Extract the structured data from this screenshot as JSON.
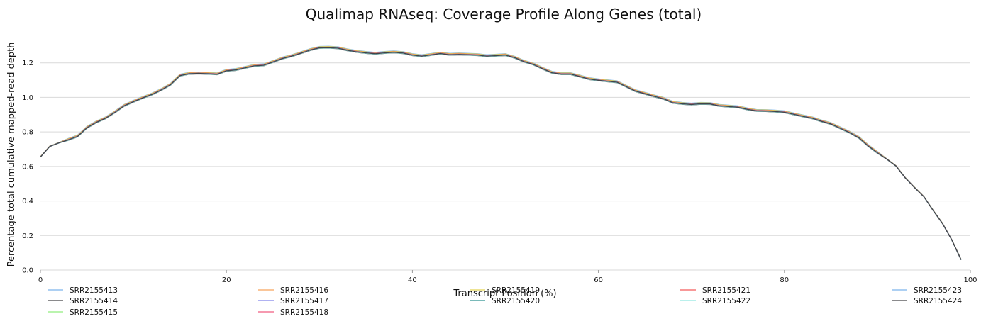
{
  "chart_data": {
    "type": "line",
    "title": "Qualimap RNAseq: Coverage Profile Along Genes (total)",
    "xlabel": "Transcript Position (%)",
    "ylabel": "Percentage total cumulative mapped-read depth",
    "xlim": [
      0,
      100
    ],
    "ylim": [
      0,
      1.4
    ],
    "x_ticks": [
      "0",
      "20",
      "40",
      "60",
      "80",
      "100"
    ],
    "y_ticks": [
      "0.0",
      "0.2",
      "0.4",
      "0.6",
      "0.8",
      "1.0",
      "1.2"
    ],
    "grid": "horizontal",
    "legend_position": "bottom",
    "x": [
      0,
      1,
      2,
      3,
      4,
      5,
      6,
      7,
      8,
      9,
      10,
      11,
      12,
      13,
      14,
      15,
      16,
      17,
      18,
      19,
      20,
      21,
      22,
      23,
      24,
      25,
      26,
      27,
      28,
      29,
      30,
      31,
      32,
      33,
      34,
      35,
      36,
      37,
      38,
      39,
      40,
      41,
      42,
      43,
      44,
      45,
      46,
      47,
      48,
      49,
      50,
      51,
      52,
      53,
      54,
      55,
      56,
      57,
      58,
      59,
      60,
      61,
      62,
      63,
      64,
      65,
      66,
      67,
      68,
      69,
      70,
      71,
      72,
      73,
      74,
      75,
      76,
      77,
      78,
      79,
      80,
      81,
      82,
      83,
      84,
      85,
      86,
      87,
      88,
      89,
      90,
      91,
      92,
      93,
      94,
      95,
      96,
      97,
      98,
      99
    ],
    "base_values": [
      0.655,
      0.716,
      0.737,
      0.755,
      0.775,
      0.825,
      0.856,
      0.88,
      0.914,
      0.952,
      0.976,
      0.998,
      1.018,
      1.044,
      1.075,
      1.127,
      1.138,
      1.14,
      1.138,
      1.135,
      1.155,
      1.16,
      1.172,
      1.184,
      1.187,
      1.206,
      1.226,
      1.24,
      1.257,
      1.275,
      1.288,
      1.289,
      1.286,
      1.274,
      1.265,
      1.259,
      1.254,
      1.259,
      1.262,
      1.258,
      1.246,
      1.24,
      1.247,
      1.255,
      1.248,
      1.25,
      1.248,
      1.246,
      1.24,
      1.243,
      1.246,
      1.231,
      1.208,
      1.192,
      1.167,
      1.144,
      1.136,
      1.136,
      1.122,
      1.107,
      1.1,
      1.094,
      1.089,
      1.063,
      1.037,
      1.022,
      1.007,
      0.993,
      0.97,
      0.964,
      0.96,
      0.964,
      0.963,
      0.952,
      0.948,
      0.944,
      0.932,
      0.923,
      0.922,
      0.919,
      0.915,
      0.903,
      0.891,
      0.88,
      0.862,
      0.847,
      0.822,
      0.797,
      0.767,
      0.72,
      0.68,
      0.643,
      0.603,
      0.534,
      0.478,
      0.425,
      0.345,
      0.27,
      0.175,
      0.06
    ],
    "series": [
      {
        "name": "SRR2155413",
        "color": "#7cb5ec",
        "offset": 0.007
      },
      {
        "name": "SRR2155414",
        "color": "#434348",
        "offset": -0.004
      },
      {
        "name": "SRR2155415",
        "color": "#90ed7d",
        "offset": 0.003
      },
      {
        "name": "SRR2155416",
        "color": "#f7a35c",
        "offset": 0.004
      },
      {
        "name": "SRR2155417",
        "color": "#8085e9",
        "offset": 0.002
      },
      {
        "name": "SRR2155418",
        "color": "#f15c80",
        "offset": -0.002
      },
      {
        "name": "SRR2155419",
        "color": "#e4d354",
        "offset": 0.005
      },
      {
        "name": "SRR2155420",
        "color": "#2b908f",
        "offset": 0.001
      },
      {
        "name": "SRR2155421",
        "color": "#f45b5b",
        "offset": 0.002
      },
      {
        "name": "SRR2155422",
        "color": "#91e8e1",
        "offset": -0.003
      },
      {
        "name": "SRR2155423",
        "color": "#7cb5ec",
        "offset": 0.0
      },
      {
        "name": "SRR2155424",
        "color": "#434348",
        "offset": -0.001
      }
    ]
  }
}
